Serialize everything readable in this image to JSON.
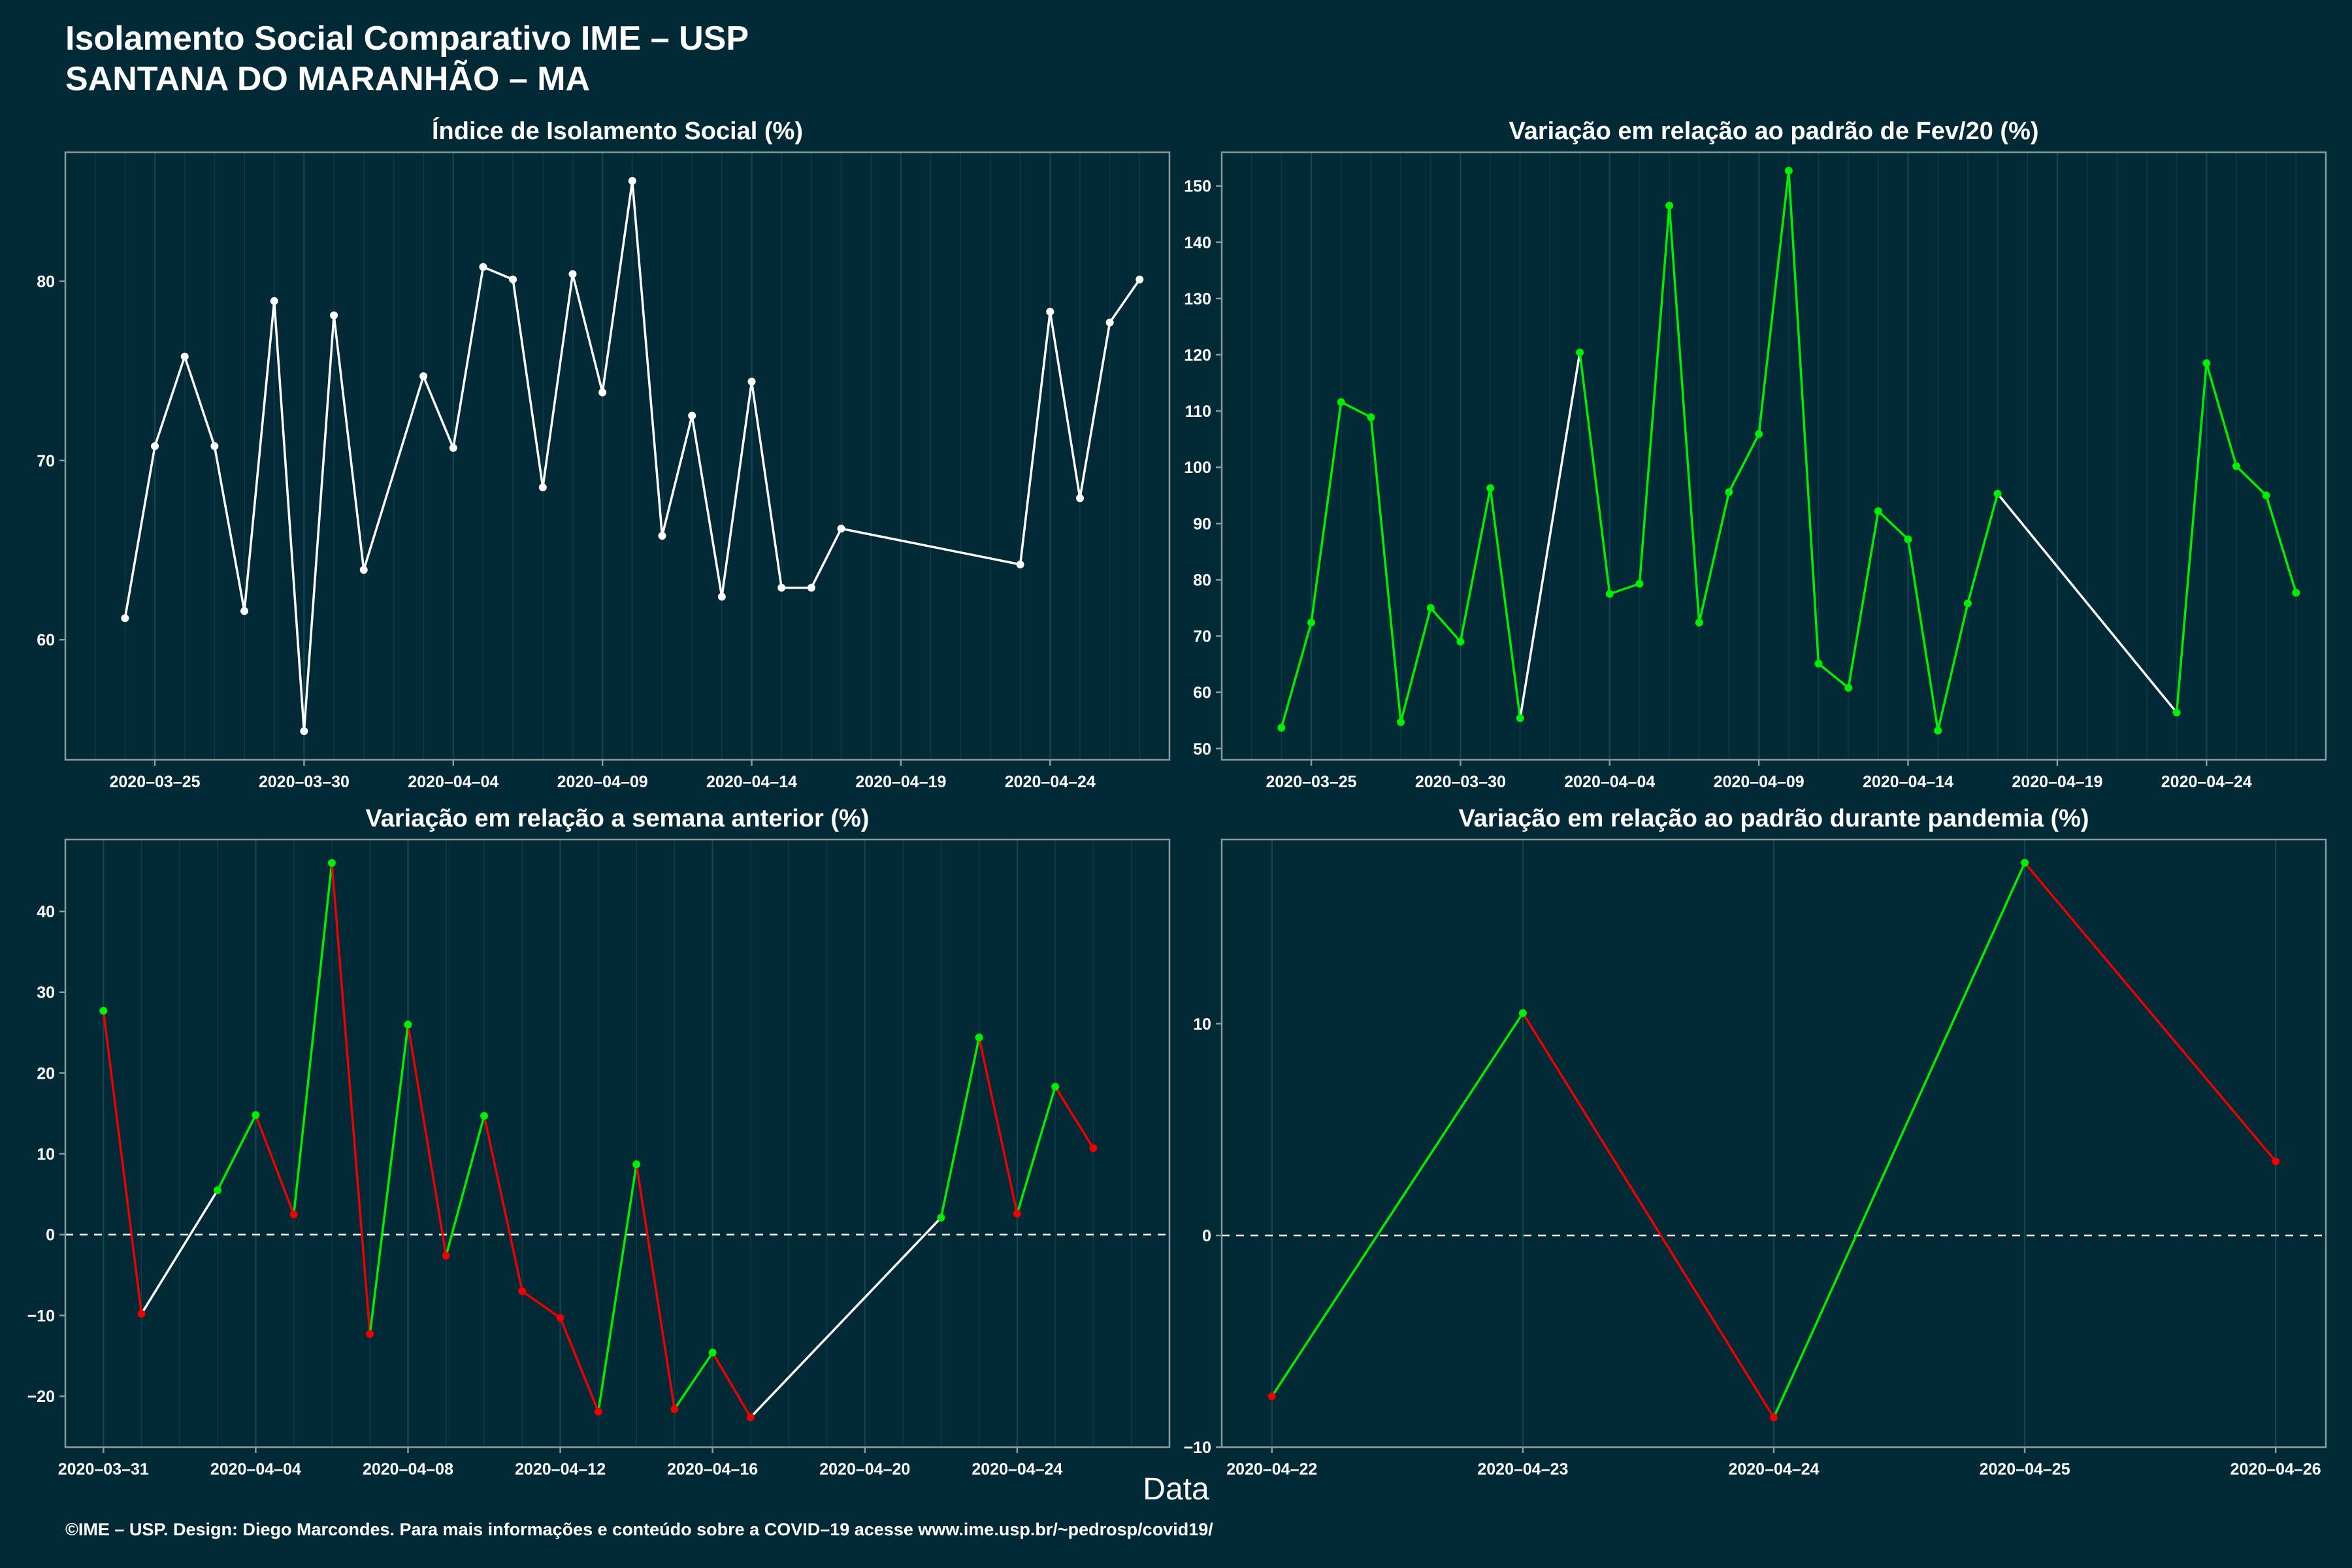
{
  "title": {
    "line1": "Isolamento Social Comparativo IME – USP",
    "line2": "SANTANA DO MARANHÃO – MA"
  },
  "x_axis_label": "Data",
  "footer": "©IME – USP. Design: Diego Marcondes. Para mais informações e conteúdo sobre a COVID–19 acesse www.ime.usp.br/~pedrosp/covid19/",
  "colors": {
    "background": "#022a36",
    "white": "#ffffff",
    "green": "#00ee00",
    "red": "#ee0000",
    "axis": "#8c9aa0",
    "grid": "#0e3c48"
  },
  "chart_data": [
    {
      "id": "isolamento",
      "type": "line",
      "title": "Índice de Isolamento Social (%)",
      "xlabel": "",
      "ylabel": "",
      "x_range": [
        "2020-03-22",
        "2020-04-28"
      ],
      "ylim": [
        53.3,
        87.2
      ],
      "yticks": [
        60,
        70,
        80
      ],
      "xticks": [
        "2020-03-25",
        "2020-03-30",
        "2020-04-04",
        "2020-04-09",
        "2020-04-14",
        "2020-04-19",
        "2020-04-24"
      ],
      "grid": true,
      "line_color_mode": "white",
      "points": [
        {
          "x": "2020-03-24",
          "y": 61.2
        },
        {
          "x": "2020-03-25",
          "y": 70.8
        },
        {
          "x": "2020-03-26",
          "y": 75.8
        },
        {
          "x": "2020-03-27",
          "y": 70.8
        },
        {
          "x": "2020-03-28",
          "y": 61.6
        },
        {
          "x": "2020-03-29",
          "y": 78.9
        },
        {
          "x": "2020-03-30",
          "y": 54.9
        },
        {
          "x": "2020-03-31",
          "y": 78.1
        },
        {
          "x": "2020-04-01",
          "y": 63.9
        },
        {
          "x": "2020-04-03",
          "y": 74.7
        },
        {
          "x": "2020-04-04",
          "y": 70.7
        },
        {
          "x": "2020-04-05",
          "y": 80.8
        },
        {
          "x": "2020-04-06",
          "y": 80.1
        },
        {
          "x": "2020-04-07",
          "y": 68.5
        },
        {
          "x": "2020-04-08",
          "y": 80.4
        },
        {
          "x": "2020-04-09",
          "y": 73.8
        },
        {
          "x": "2020-04-10",
          "y": 85.6
        },
        {
          "x": "2020-04-11",
          "y": 65.8
        },
        {
          "x": "2020-04-12",
          "y": 72.5
        },
        {
          "x": "2020-04-13",
          "y": 62.4
        },
        {
          "x": "2020-04-14",
          "y": 74.4
        },
        {
          "x": "2020-04-15",
          "y": 62.9
        },
        {
          "x": "2020-04-16",
          "y": 62.9
        },
        {
          "x": "2020-04-17",
          "y": 66.2
        },
        {
          "x": "2020-04-23",
          "y": 64.2
        },
        {
          "x": "2020-04-24",
          "y": 78.3
        },
        {
          "x": "2020-04-25",
          "y": 67.9
        },
        {
          "x": "2020-04-26",
          "y": 77.7
        },
        {
          "x": "2020-04-27",
          "y": 80.1
        }
      ]
    },
    {
      "id": "fev20",
      "type": "line",
      "title": "Variação em relação ao padrão de Fev/20 (%)",
      "xlabel": "",
      "ylabel": "",
      "x_range": [
        "2020-03-22",
        "2020-04-28"
      ],
      "ylim": [
        48,
        156
      ],
      "yticks": [
        50,
        60,
        70,
        80,
        90,
        100,
        110,
        120,
        130,
        140,
        150
      ],
      "xticks": [
        "2020-03-25",
        "2020-03-30",
        "2020-04-04",
        "2020-04-09",
        "2020-04-14",
        "2020-04-19",
        "2020-04-24"
      ],
      "grid": true,
      "line_color_mode": "gap",
      "points": [
        {
          "x": "2020-03-24",
          "y": 53.7
        },
        {
          "x": "2020-03-25",
          "y": 72.4
        },
        {
          "x": "2020-03-26",
          "y": 111.6
        },
        {
          "x": "2020-03-27",
          "y": 108.9
        },
        {
          "x": "2020-03-28",
          "y": 54.7
        },
        {
          "x": "2020-03-29",
          "y": 75.0
        },
        {
          "x": "2020-03-30",
          "y": 69.0
        },
        {
          "x": "2020-03-31",
          "y": 96.3
        },
        {
          "x": "2020-04-01",
          "y": 55.4
        },
        {
          "x": "2020-04-03",
          "y": 120.4
        },
        {
          "x": "2020-04-04",
          "y": 77.5
        },
        {
          "x": "2020-04-05",
          "y": 79.3
        },
        {
          "x": "2020-04-06",
          "y": 146.5
        },
        {
          "x": "2020-04-07",
          "y": 72.4
        },
        {
          "x": "2020-04-08",
          "y": 95.6
        },
        {
          "x": "2020-04-09",
          "y": 105.9
        },
        {
          "x": "2020-04-10",
          "y": 152.7
        },
        {
          "x": "2020-04-11",
          "y": 65.1
        },
        {
          "x": "2020-04-12",
          "y": 60.8
        },
        {
          "x": "2020-04-13",
          "y": 92.2
        },
        {
          "x": "2020-04-14",
          "y": 87.2
        },
        {
          "x": "2020-04-15",
          "y": 53.2
        },
        {
          "x": "2020-04-16",
          "y": 75.8
        },
        {
          "x": "2020-04-17",
          "y": 95.3
        },
        {
          "x": "2020-04-23",
          "y": 56.4
        },
        {
          "x": "2020-04-24",
          "y": 118.5
        },
        {
          "x": "2020-04-25",
          "y": 100.2
        },
        {
          "x": "2020-04-26",
          "y": 95.0
        },
        {
          "x": "2020-04-27",
          "y": 77.7
        }
      ]
    },
    {
      "id": "semana",
      "type": "line",
      "title": "Variação em relação a semana anterior (%)",
      "xlabel": "",
      "ylabel": "",
      "x_range": [
        "2020-03-30",
        "2020-04-28"
      ],
      "ylim": [
        -26.3,
        48.9
      ],
      "yticks": [
        -20,
        -10,
        0,
        10,
        20,
        30,
        40
      ],
      "xticks": [
        "2020-03-31",
        "2020-04-04",
        "2020-04-08",
        "2020-04-12",
        "2020-04-16",
        "2020-04-20",
        "2020-04-24"
      ],
      "grid": true,
      "zero_line": true,
      "line_color_mode": "direction",
      "points": [
        {
          "x": "2020-03-31",
          "y": 27.7
        },
        {
          "x": "2020-04-01",
          "y": -9.8
        },
        {
          "x": "2020-04-03",
          "y": 5.5
        },
        {
          "x": "2020-04-04",
          "y": 14.8
        },
        {
          "x": "2020-04-05",
          "y": 2.5
        },
        {
          "x": "2020-04-06",
          "y": 46.0
        },
        {
          "x": "2020-04-07",
          "y": -12.3
        },
        {
          "x": "2020-04-08",
          "y": 26.0
        },
        {
          "x": "2020-04-09",
          "y": -2.6
        },
        {
          "x": "2020-04-10",
          "y": 14.7
        },
        {
          "x": "2020-04-11",
          "y": -7.0
        },
        {
          "x": "2020-04-12",
          "y": -10.3
        },
        {
          "x": "2020-04-13",
          "y": -21.9
        },
        {
          "x": "2020-04-14",
          "y": 8.7
        },
        {
          "x": "2020-04-15",
          "y": -21.6
        },
        {
          "x": "2020-04-16",
          "y": -14.6
        },
        {
          "x": "2020-04-17",
          "y": -22.6
        },
        {
          "x": "2020-04-22",
          "y": 2.1
        },
        {
          "x": "2020-04-23",
          "y": 24.4
        },
        {
          "x": "2020-04-24",
          "y": 2.6
        },
        {
          "x": "2020-04-25",
          "y": 18.3
        },
        {
          "x": "2020-04-26",
          "y": 10.7
        }
      ]
    },
    {
      "id": "pandemia",
      "type": "line",
      "title": "Variação em relação ao padrão durante pandemia (%)",
      "xlabel": "",
      "ylabel": "",
      "x_range": [
        "2020-04-22",
        "2020-04-26"
      ],
      "x_pad_days": 0.2,
      "ylim": [
        -10,
        18.7
      ],
      "yticks": [
        -10,
        0,
        10
      ],
      "xticks": [
        "2020-04-22",
        "2020-04-23",
        "2020-04-24",
        "2020-04-25",
        "2020-04-26"
      ],
      "grid": true,
      "zero_line": true,
      "line_color_mode": "direction",
      "points": [
        {
          "x": "2020-04-22",
          "y": -7.6
        },
        {
          "x": "2020-04-23",
          "y": 10.5
        },
        {
          "x": "2020-04-24",
          "y": -8.6
        },
        {
          "x": "2020-04-25",
          "y": 17.6
        },
        {
          "x": "2020-04-26",
          "y": 3.5
        }
      ]
    }
  ]
}
